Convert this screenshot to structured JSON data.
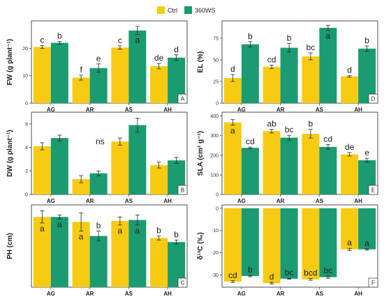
{
  "legend": {
    "series": [
      {
        "name": "Ctrl",
        "color": "#f6cb12"
      },
      {
        "name": "360WS",
        "color": "#1a9b72"
      }
    ]
  },
  "chart_data": [
    {
      "panel": "A",
      "type": "bar",
      "ylabel": "FW (g plant⁻¹)",
      "categories": [
        "AG",
        "AR",
        "AS",
        "AH"
      ],
      "ylim": [
        0,
        30
      ],
      "yticks": [
        0,
        10,
        20
      ],
      "series": [
        {
          "name": "Ctrl",
          "values": [
            20.5,
            9.3,
            20.3,
            13.5
          ],
          "errors": [
            0.5,
            0.9,
            0.6,
            1.0
          ]
        },
        {
          "name": "360WS",
          "values": [
            22.0,
            12.8,
            26.5,
            16.6
          ],
          "errors": [
            0.5,
            1.5,
            1.5,
            1.0
          ]
        }
      ],
      "sig_labels": [
        [
          "c",
          "b"
        ],
        [
          "f",
          "e"
        ],
        [
          "c",
          "a"
        ],
        [
          "de",
          "d"
        ]
      ],
      "sig_pos": [
        [
          "above",
          "above"
        ],
        [
          "above",
          "above"
        ],
        [
          "above",
          "inside"
        ],
        [
          "above",
          "above"
        ]
      ],
      "letter": "A"
    },
    {
      "panel": "D",
      "type": "bar",
      "ylabel": "EL (%)",
      "categories": [
        "AG",
        "AR",
        "AS",
        "AH"
      ],
      "ylim": [
        0,
        95
      ],
      "yticks": [
        0,
        25,
        50,
        75
      ],
      "series": [
        {
          "name": "Ctrl",
          "values": [
            29,
            42,
            54,
            31
          ],
          "errors": [
            4,
            2,
            4,
            1
          ]
        },
        {
          "name": "360WS",
          "values": [
            68,
            64,
            87,
            63
          ],
          "errors": [
            3,
            5,
            3,
            3
          ]
        }
      ],
      "sig_labels": [
        [
          "d",
          "b"
        ],
        [
          "cd",
          "b"
        ],
        [
          "bc",
          "a"
        ],
        [
          "d",
          "b"
        ]
      ],
      "sig_pos": [
        [
          "above",
          "above"
        ],
        [
          "above",
          "above"
        ],
        [
          "above",
          "inside"
        ],
        [
          "above",
          "above"
        ]
      ],
      "letter": "D"
    },
    {
      "panel": "B",
      "type": "bar",
      "ylabel": "DW (g plant⁻¹)",
      "categories": [
        "AG",
        "AR",
        "AS",
        "AH"
      ],
      "ylim": [
        0,
        7
      ],
      "yticks": [
        0,
        2,
        4,
        6
      ],
      "series": [
        {
          "name": "Ctrl",
          "values": [
            4.1,
            1.3,
            4.5,
            2.5
          ],
          "errors": [
            0.3,
            0.3,
            0.3,
            0.25
          ]
        },
        {
          "name": "360WS",
          "values": [
            4.8,
            1.8,
            5.9,
            2.9
          ],
          "errors": [
            0.25,
            0.2,
            0.6,
            0.25
          ]
        }
      ],
      "sig_labels": [
        [
          "",
          ""
        ],
        [
          "",
          ""
        ],
        [
          "ns",
          ""
        ],
        [
          "",
          ""
        ]
      ],
      "sig_pos": [
        [
          "left",
          "above"
        ],
        [
          "above",
          "above"
        ],
        [
          "left",
          "above"
        ],
        [
          "above",
          "above"
        ]
      ],
      "letter": "B"
    },
    {
      "panel": "E",
      "type": "bar",
      "ylabel": "SLA (cm² g⁻¹)",
      "categories": [
        "AG",
        "AR",
        "AS",
        "AH"
      ],
      "ylim": [
        0,
        420
      ],
      "yticks": [
        0,
        100,
        200,
        300,
        400
      ],
      "series": [
        {
          "name": "Ctrl",
          "values": [
            368,
            323,
            310,
            205
          ],
          "errors": [
            14,
            9,
            22,
            9
          ]
        },
        {
          "name": "360WS",
          "values": [
            238,
            290,
            243,
            175
          ],
          "errors": [
            4,
            12,
            12,
            10
          ]
        }
      ],
      "sig_labels": [
        [
          "a",
          "cd"
        ],
        [
          "ab",
          "bc"
        ],
        [
          "b",
          "cd"
        ],
        [
          "de",
          "e"
        ]
      ],
      "sig_pos": [
        [
          "inside",
          "above"
        ],
        [
          "above",
          "above"
        ],
        [
          "above",
          "above"
        ],
        [
          "above",
          "above"
        ]
      ],
      "letter": "E"
    },
    {
      "panel": "C",
      "type": "bar",
      "ylabel": "PH (cm)",
      "categories": [
        "AG",
        "AR",
        "AS",
        "AH"
      ],
      "ylim": [
        0,
        41
      ],
      "yticks": [],
      "series": [
        {
          "name": "Ctrl",
          "values": [
            35,
            32.5,
            33,
            24.5
          ],
          "errors": [
            3,
            4.5,
            2,
            1
          ]
        },
        {
          "name": "360WS",
          "values": [
            35,
            25.5,
            33.5,
            22.5
          ],
          "errors": [
            1,
            2.5,
            2.5,
            1
          ]
        }
      ],
      "sig_labels": [
        [
          "a",
          "a"
        ],
        [
          "a",
          "b"
        ],
        [
          "a",
          "a"
        ],
        [
          "b",
          "b"
        ]
      ],
      "sig_pos": [
        [
          "inside",
          "inside"
        ],
        [
          "inside",
          "above"
        ],
        [
          "inside",
          "inside"
        ],
        [
          "above",
          "above"
        ]
      ],
      "letter": "C"
    },
    {
      "panel": "F",
      "type": "bar",
      "ylabel": "δ¹³C (‰)",
      "categories": [
        "AG",
        "AR",
        "AS",
        "AH"
      ],
      "ylim": [
        -35.5,
        1.5
      ],
      "yticks": [
        0,
        -10,
        -20,
        -30
      ],
      "series": [
        {
          "name": "Ctrl",
          "values": [
            -33.0,
            -33.7,
            -32.0,
            -18.5
          ],
          "errors": [
            0.4,
            0.4,
            0.4,
            0.5
          ]
        },
        {
          "name": "360WS",
          "values": [
            -30.5,
            -31.7,
            -31.0,
            -18.5
          ],
          "errors": [
            0.3,
            0.2,
            0.5,
            0.3
          ]
        }
      ],
      "sig_labels": [
        [
          "cd",
          "b"
        ],
        [
          "d",
          "bc"
        ],
        [
          "bcd",
          "bc"
        ],
        [
          "a",
          "a"
        ]
      ],
      "sig_pos": [
        [
          "inside",
          "inside"
        ],
        [
          "inside",
          "inside"
        ],
        [
          "inside",
          "inside"
        ],
        [
          "inside",
          "inside"
        ]
      ],
      "letter": "F"
    }
  ]
}
